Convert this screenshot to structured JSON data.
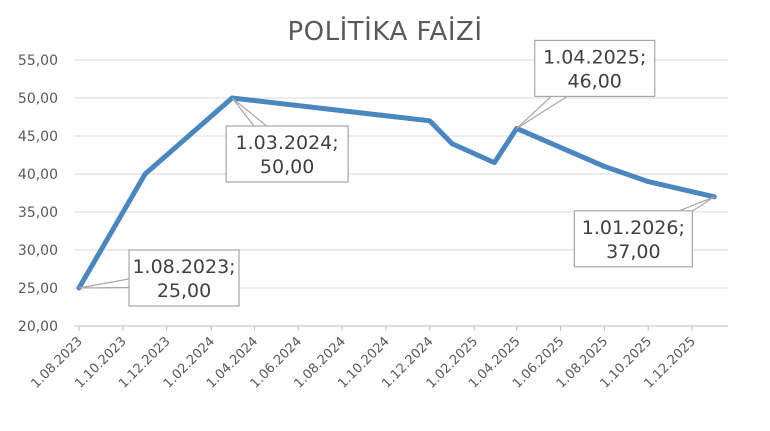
{
  "chart_data": {
    "type": "line",
    "title": "POLİTİKA FAİZİ",
    "xlabel": "",
    "ylabel": "",
    "ylim": [
      20,
      55
    ],
    "yticks": [
      "20,00",
      "25,00",
      "30,00",
      "35,00",
      "40,00",
      "45,00",
      "50,00",
      "55,00"
    ],
    "ytick_values": [
      20,
      25,
      30,
      35,
      40,
      45,
      50,
      55
    ],
    "xticks": [
      "1.08.2023",
      "1.10.2023",
      "1.12.2023",
      "1.02.2024",
      "1.04.2024",
      "1.06.2024",
      "1.08.2024",
      "1.10.2024",
      "1.12.2024",
      "1.02.2025",
      "1.04.2025",
      "1.06.2025",
      "1.08.2025",
      "1.10.2025",
      "1.12.2025"
    ],
    "grid": true,
    "colors": {
      "series": "#4a86c0",
      "grid": "#d9d9d9",
      "text": "#595959"
    },
    "series": [
      {
        "values": [
          [
            "2023-08-01",
            25
          ],
          [
            "2023-11-01",
            40
          ],
          [
            "2024-03-01",
            50
          ],
          [
            "2024-12-01",
            47
          ],
          [
            "2025-01-01",
            44
          ],
          [
            "2025-03-01",
            41.5
          ],
          [
            "2025-04-01",
            46
          ],
          [
            "2025-06-01",
            43.5
          ],
          [
            "2025-08-01",
            41
          ],
          [
            "2025-10-01",
            39
          ],
          [
            "2026-01-01",
            37
          ]
        ]
      }
    ],
    "annotations": [
      {
        "date": "2023-08-01",
        "y": 25,
        "line1": "1.08.2023;",
        "line2": "25,00"
      },
      {
        "date": "2024-03-01",
        "y": 50,
        "line1": "1.03.2024;",
        "line2": "50,00"
      },
      {
        "date": "2025-04-01",
        "y": 46,
        "line1": "1.04.2025;",
        "line2": "46,00"
      },
      {
        "date": "2026-01-01",
        "y": 37,
        "line1": "1.01.2026;",
        "line2": "37,00"
      }
    ]
  }
}
